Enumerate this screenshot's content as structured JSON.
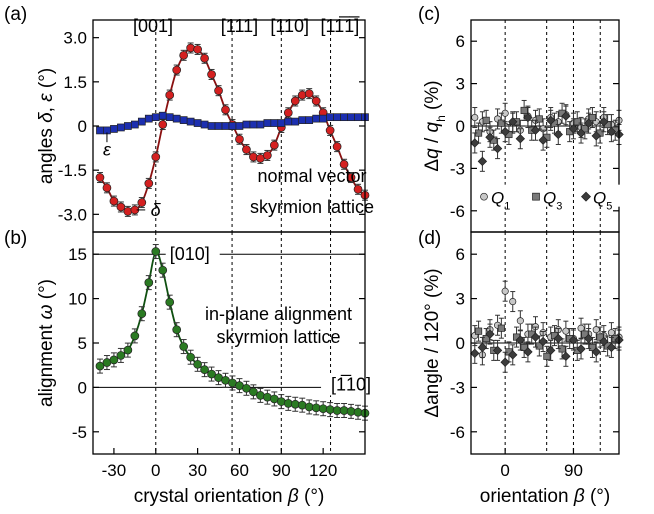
{
  "chart_data": [
    {
      "id": "a",
      "panel_label": "(a)",
      "type": "scatter",
      "ylabel": "angles δ, ε (°)",
      "xlim": [
        -45,
        150
      ],
      "ylim": [
        -3.6,
        3.6
      ],
      "yticks": [
        -3.0,
        -1.5,
        0,
        1.5,
        3.0
      ],
      "ytick_labels": [
        "-3.0",
        "-1.5",
        "0",
        "1.5",
        "3.0"
      ],
      "vlines": [
        0,
        54.7,
        90,
        125.3
      ],
      "direction_labels": [
        {
          "text": "[001]",
          "x": -2,
          "y": 3.2
        },
        {
          "text": "[111]",
          "x": 60,
          "y": 3.2
        },
        {
          "text": "[110]",
          "x": 96,
          "y": 3.2
        },
        {
          "text": "[11̅1̅]",
          "x": 132,
          "y": 3.2
        }
      ],
      "annotations": [
        {
          "text": "ε",
          "x": -35,
          "y": -0.8
        },
        {
          "text": "δ",
          "x": -8,
          "y": -2.85
        },
        {
          "text": "normal vector",
          "x": 112,
          "y": -1.9
        },
        {
          "text": "skyrmion lattice",
          "x": 112,
          "y": -2.95
        }
      ],
      "series": [
        {
          "name": "δ",
          "color": "#d42020",
          "fit_color": "#8a1010",
          "x": [
            -40,
            -35,
            -30,
            -25,
            -20,
            -15,
            -10,
            -5,
            0,
            5,
            10,
            15,
            20,
            25,
            30,
            35,
            40,
            45,
            50,
            55,
            60,
            65,
            70,
            75,
            80,
            85,
            90,
            95,
            100,
            105,
            110,
            115,
            120,
            125,
            130,
            135,
            140,
            145,
            150
          ],
          "values": [
            -1.75,
            -2.1,
            -2.55,
            -2.75,
            -2.9,
            -2.85,
            -2.6,
            -1.95,
            -1.05,
            0.05,
            1.05,
            1.9,
            2.4,
            2.65,
            2.6,
            2.3,
            1.75,
            1.2,
            0.55,
            0.05,
            -0.45,
            -0.8,
            -1.05,
            -1.1,
            -1.0,
            -0.65,
            -0.05,
            0.45,
            0.85,
            1.05,
            1.1,
            0.85,
            0.45,
            -0.15,
            -0.7,
            -1.3,
            -1.75,
            -2.15,
            -2.35
          ]
        },
        {
          "name": "ε",
          "color": "#1c2fb0",
          "fit_color": "#1c2fb0",
          "x": [
            -40,
            -35,
            -30,
            -25,
            -20,
            -15,
            -10,
            -5,
            0,
            5,
            10,
            15,
            20,
            25,
            30,
            35,
            40,
            45,
            50,
            55,
            60,
            65,
            70,
            75,
            80,
            85,
            90,
            95,
            100,
            105,
            110,
            115,
            120,
            125,
            130,
            135,
            140,
            145,
            150
          ],
          "values": [
            -0.15,
            -0.15,
            -0.1,
            -0.05,
            0.0,
            0.05,
            0.15,
            0.25,
            0.3,
            0.35,
            0.3,
            0.25,
            0.2,
            0.15,
            0.1,
            0.05,
            0.0,
            0.0,
            0.0,
            0.0,
            0.0,
            0.05,
            0.05,
            0.05,
            0.1,
            0.1,
            0.1,
            0.15,
            0.15,
            0.2,
            0.2,
            0.25,
            0.25,
            0.3,
            0.3,
            0.3,
            0.3,
            0.3,
            0.3
          ]
        }
      ]
    },
    {
      "id": "b",
      "panel_label": "(b)",
      "type": "scatter",
      "ylabel": "alignment ω (°)",
      "xlabel": "crystal orientation β (°)",
      "xlim": [
        -45,
        150
      ],
      "ylim": [
        -7.5,
        17.5
      ],
      "xticks": [
        -30,
        0,
        30,
        60,
        90,
        120
      ],
      "xtick_labels": [
        "-30",
        "0",
        "30",
        "60",
        "90",
        "120"
      ],
      "yticks": [
        -5,
        0,
        5,
        10,
        15
      ],
      "ytick_labels": [
        "-5",
        "0",
        "5",
        "10",
        "15"
      ],
      "vlines": [
        0,
        54.7,
        90,
        125.3
      ],
      "hlines": [
        15,
        0
      ],
      "direction_labels": [
        {
          "text": "[010]",
          "x": 10,
          "y": 15
        },
        {
          "text": "[1̅10]",
          "x": 140,
          "y": 0
        }
      ],
      "annotations": [
        {
          "text": "in-plane alignment",
          "x": 88,
          "y": 7.6
        },
        {
          "text": "skyrmion lattice",
          "x": 88,
          "y": 5.0
        }
      ],
      "series": [
        {
          "name": "ω",
          "color": "#2a7a22",
          "fit_color": "#0f5010",
          "x": [
            -40,
            -35,
            -30,
            -25,
            -20,
            -15,
            -10,
            -5,
            0,
            5,
            10,
            15,
            20,
            25,
            30,
            35,
            40,
            45,
            50,
            55,
            60,
            65,
            70,
            75,
            80,
            85,
            90,
            95,
            100,
            105,
            110,
            115,
            120,
            125,
            130,
            135,
            140,
            145,
            150
          ],
          "values": [
            2.4,
            2.8,
            3.1,
            3.6,
            4.2,
            5.8,
            8.3,
            11.8,
            15.3,
            13.2,
            9.6,
            6.5,
            4.6,
            3.4,
            2.6,
            2.0,
            1.5,
            1.1,
            0.8,
            0.5,
            0.2,
            -0.1,
            -0.5,
            -0.9,
            -1.1,
            -1.3,
            -1.6,
            -1.8,
            -1.9,
            -2.0,
            -2.2,
            -2.3,
            -2.4,
            -2.5,
            -2.6,
            -2.6,
            -2.7,
            -2.8,
            -2.9
          ]
        }
      ]
    },
    {
      "id": "c",
      "panel_label": "(c)",
      "type": "scatter",
      "ylabel": "Δq / q_h (%)",
      "xlim": [
        -45,
        150
      ],
      "ylim": [
        -7.5,
        7.5
      ],
      "yticks": [
        -6,
        -3,
        0,
        3,
        6
      ],
      "ytick_labels": [
        "-6",
        "-3",
        "0",
        "3",
        "6"
      ],
      "vlines": [
        0,
        54.7,
        90,
        125.3
      ],
      "hlines": [
        0
      ],
      "series": [
        {
          "name": "Q1",
          "marker": "circle",
          "color": "#c8c8c8",
          "x": [
            -40,
            -30,
            -20,
            -10,
            0,
            10,
            20,
            30,
            40,
            50,
            60,
            70,
            80,
            90,
            100,
            110,
            120,
            130,
            140,
            150
          ],
          "values": [
            0.6,
            0.3,
            -0.4,
            0.5,
            0.9,
            0.2,
            -0.3,
            0.7,
            0.4,
            -0.2,
            0.6,
            0.3,
            0.8,
            0.2,
            -0.1,
            0.5,
            0.3,
            0.6,
            0.1,
            0.4
          ]
        },
        {
          "name": "Q3",
          "marker": "square",
          "color": "#7a7a7a",
          "x": [
            -35,
            -25,
            -15,
            -5,
            5,
            15,
            25,
            35,
            45,
            55,
            65,
            75,
            85,
            95,
            105,
            115,
            125,
            135,
            145
          ],
          "values": [
            -0.5,
            0.4,
            -1.0,
            0.2,
            -0.6,
            0.3,
            1.1,
            -0.3,
            0.5,
            -0.8,
            0.2,
            0.9,
            -0.4,
            0.3,
            -0.2,
            0.6,
            -0.5,
            0.1,
            -0.3
          ]
        },
        {
          "name": "Q5",
          "marker": "diamond",
          "color": "#3c3c3c",
          "x": [
            -40,
            -30,
            -20,
            -10,
            0,
            10,
            20,
            30,
            40,
            50,
            60,
            70,
            80,
            90,
            100,
            110,
            120,
            130,
            140,
            150
          ],
          "values": [
            -1.2,
            -2.5,
            -0.8,
            -1.6,
            -0.4,
            0.3,
            -0.9,
            0.6,
            -0.3,
            -1.0,
            0.4,
            -0.6,
            0.7,
            -0.2,
            -0.5,
            0.2,
            -0.7,
            0.3,
            -0.4,
            -0.6
          ]
        }
      ],
      "legend": [
        {
          "text": "Q",
          "sub": "1"
        },
        {
          "text": "Q",
          "sub": "3"
        },
        {
          "text": "Q",
          "sub": "5"
        }
      ],
      "legend_placement": "bottom"
    },
    {
      "id": "d",
      "panel_label": "(d)",
      "type": "scatter",
      "ylabel": "Δangle / 120° (%)",
      "xlabel": "orientation β (°)",
      "xlim": [
        -45,
        150
      ],
      "ylim": [
        -7.5,
        7.5
      ],
      "xticks": [
        0,
        90
      ],
      "xtick_labels": [
        "0",
        "90"
      ],
      "yticks": [
        -6,
        -3,
        0,
        3,
        6
      ],
      "ytick_labels": [
        "-6",
        "-3",
        "0",
        "3",
        "6"
      ],
      "vlines": [
        0,
        54.7,
        90,
        125.3
      ],
      "hlines": [
        0
      ],
      "series": [
        {
          "name": "Q1",
          "marker": "circle",
          "color": "#c8c8c8",
          "x": [
            -40,
            -30,
            -20,
            -10,
            0,
            10,
            20,
            30,
            40,
            50,
            60,
            70,
            80,
            90,
            100,
            110,
            120,
            130,
            140,
            150
          ],
          "values": [
            0.5,
            -0.8,
            0.9,
            1.2,
            3.5,
            2.8,
            1.5,
            0.6,
            1.1,
            0.7,
            0.4,
            0.9,
            0.8,
            0.3,
            1.0,
            0.6,
            0.9,
            0.5,
            0.7,
            0.4
          ]
        },
        {
          "name": "Q3",
          "marker": "square",
          "color": "#7a7a7a",
          "x": [
            -35,
            -25,
            -15,
            -5,
            5,
            15,
            25,
            35,
            45,
            55,
            65,
            75,
            85,
            95,
            105,
            115,
            125,
            135,
            145
          ],
          "values": [
            0.8,
            0.3,
            -0.5,
            1.0,
            -0.6,
            0.4,
            -0.3,
            0.6,
            -0.2,
            -0.9,
            0.5,
            -0.4,
            0.3,
            -0.5,
            0.6,
            -0.3,
            0.4,
            -0.2,
            0.3
          ]
        },
        {
          "name": "Q5",
          "marker": "diamond",
          "color": "#3c3c3c",
          "x": [
            -40,
            -30,
            -20,
            -10,
            0,
            10,
            20,
            30,
            40,
            50,
            60,
            70,
            80,
            90,
            100,
            110,
            120,
            130,
            140,
            150
          ],
          "values": [
            -0.7,
            -0.3,
            0.6,
            -0.5,
            -1.3,
            -0.8,
            0.2,
            -0.6,
            0.4,
            0.1,
            -0.5,
            0.3,
            -0.9,
            0.2,
            -0.4,
            0.3,
            -0.6,
            0.1,
            -0.3,
            0.2
          ]
        }
      ]
    }
  ]
}
